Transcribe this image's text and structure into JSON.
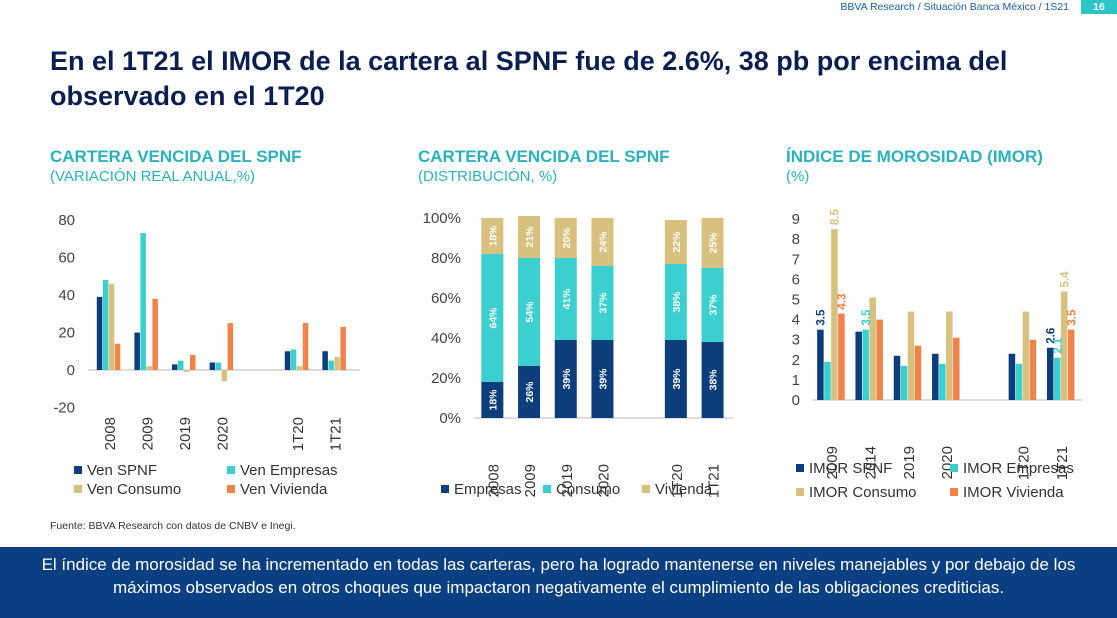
{
  "header": {
    "source": "BBVA Research / Situación Banca México / 1S21",
    "page": "16"
  },
  "title": "En el 1T21 el IMOR de la cartera al SPNF fue de 2.6%, 38 pb por encima del observado en el 1T20",
  "source_note": "Fuente: BBVA Research con datos de CNBV e Inegi.",
  "banner": "El índice de morosidad se ha incrementado en todas las carteras, pero ha logrado mantenerse en niveles manejables y por debajo de los máximos observados en otros choques que impactaron negativamente el cumplimiento de las obligaciones crediticias.",
  "colors": {
    "spnf": "#0d3d7a",
    "empresas": "#3ccfcf",
    "consumo": "#d8c07e",
    "vivienda": "#f0834a"
  },
  "chart_data": [
    {
      "type": "bar",
      "title": "CARTERA VENCIDA DEL SPNF",
      "subtitle": "(VARIACIÓN REAL ANUAL,%)",
      "categories": [
        "2008",
        "2009",
        "2019",
        "2020",
        "",
        "1T20",
        "1T21"
      ],
      "ylim": [
        -20,
        80
      ],
      "yticks": [
        80,
        60,
        40,
        20,
        0,
        -20
      ],
      "series": [
        {
          "name": "Ven SPNF",
          "values": [
            39,
            20,
            3,
            4,
            null,
            10,
            10
          ]
        },
        {
          "name": "Ven Empresas",
          "values": [
            48,
            73,
            5,
            4,
            null,
            11,
            5
          ]
        },
        {
          "name": "Ven Consumo",
          "values": [
            46,
            2,
            -1,
            -6,
            null,
            2,
            7
          ]
        },
        {
          "name": "Ven Vivienda",
          "values": [
            14,
            38,
            8,
            25,
            null,
            25,
            23
          ]
        }
      ]
    },
    {
      "type": "bar",
      "stacked": true,
      "title": "CARTERA VENCIDA DEL SPNF",
      "subtitle": "(DISTRIBUCIÓN, %)",
      "categories": [
        "2008",
        "2009",
        "2019",
        "2020",
        "",
        "1T20",
        "1T21"
      ],
      "ylim": [
        0,
        100
      ],
      "yticks": [
        "100%",
        "80%",
        "60%",
        "40%",
        "20%",
        "0%"
      ],
      "series": [
        {
          "name": "Empresas",
          "values": [
            18,
            26,
            39,
            39,
            null,
            39,
            38
          ],
          "labels": [
            "18%",
            "26%",
            "39%",
            "39%",
            "",
            "39%",
            "38%"
          ]
        },
        {
          "name": "Consumo",
          "values": [
            64,
            54,
            41,
            37,
            null,
            38,
            37
          ],
          "labels": [
            "64%",
            "54%",
            "41%",
            "37%",
            "",
            "38%",
            "37%"
          ]
        },
        {
          "name": "Vivienda",
          "values": [
            18,
            21,
            20,
            24,
            null,
            22,
            25
          ],
          "labels": [
            "18%",
            "21%",
            "20%",
            "24%",
            "",
            "22%",
            "25%"
          ]
        }
      ]
    },
    {
      "type": "bar",
      "title": "ÍNDICE DE MOROSIDAD (IMOR)",
      "subtitle": "(%)",
      "categories": [
        "2009",
        "2014",
        "2019",
        "2020",
        "",
        "1T20",
        "1T21"
      ],
      "ylim": [
        0,
        9
      ],
      "yticks": [
        9,
        8,
        7,
        6,
        5,
        4,
        3,
        2,
        1,
        0
      ],
      "series": [
        {
          "name": "IMOR SPNF",
          "values": [
            3.5,
            3.4,
            2.2,
            2.3,
            null,
            2.3,
            2.6
          ]
        },
        {
          "name": "IMOR Empresas",
          "values": [
            1.9,
            3.5,
            1.7,
            1.8,
            null,
            1.8,
            2.1
          ]
        },
        {
          "name": "IMOR Consumo",
          "values": [
            8.5,
            5.1,
            4.4,
            4.4,
            null,
            4.4,
            5.4
          ]
        },
        {
          "name": "IMOR Vivienda",
          "values": [
            4.3,
            4.0,
            2.7,
            3.1,
            null,
            3.0,
            3.5
          ]
        }
      ],
      "annotations": [
        {
          "series": 0,
          "index": 0,
          "text": "3.5"
        },
        {
          "series": 1,
          "index": 1,
          "text": "3.5"
        },
        {
          "series": 2,
          "index": 0,
          "text": "8.5"
        },
        {
          "series": 3,
          "index": 0,
          "text": "4.3"
        },
        {
          "series": 0,
          "index": 6,
          "text": "2.6"
        },
        {
          "series": 1,
          "index": 6,
          "text": "2.1"
        },
        {
          "series": 2,
          "index": 6,
          "text": "5.4"
        },
        {
          "series": 3,
          "index": 6,
          "text": "3.5"
        }
      ]
    }
  ]
}
